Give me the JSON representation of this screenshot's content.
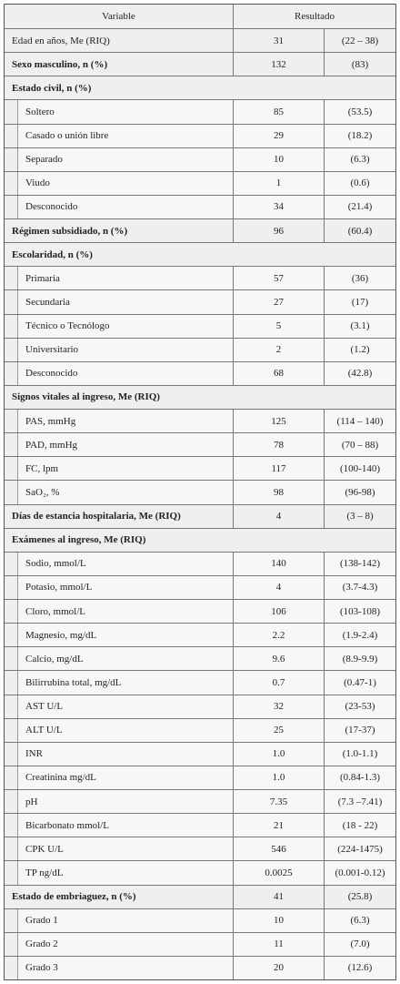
{
  "table": {
    "header": [
      "Variable",
      "Resultado"
    ],
    "rows": [
      {
        "style": "plain",
        "label": "Edad en años, Me (RIQ)",
        "value": "31",
        "range": "(22 – 38)"
      },
      {
        "style": "bold",
        "label": "Sexo masculino, n (%)",
        "value": "132",
        "range": "(83)"
      },
      {
        "style": "section",
        "label": "Estado civil, n (%)"
      },
      {
        "style": "sub",
        "label": "Soltero",
        "value": "85",
        "range": "(53.5)"
      },
      {
        "style": "sub",
        "label": "Casado o unión libre",
        "value": "29",
        "range": "(18.2)"
      },
      {
        "style": "sub",
        "label": "Separado",
        "value": "10",
        "range": "(6.3)"
      },
      {
        "style": "sub",
        "label": "Viudo",
        "value": "1",
        "range": "(0.6)"
      },
      {
        "style": "sub",
        "label": "Desconocido",
        "value": "34",
        "range": "(21.4)"
      },
      {
        "style": "bold",
        "label": "Régimen subsidiado, n (%)",
        "value": "96",
        "range": "(60.4)"
      },
      {
        "style": "section",
        "label": "Escolaridad, n (%)"
      },
      {
        "style": "sub",
        "label": "Primaria",
        "value": "57",
        "range": "(36)"
      },
      {
        "style": "sub",
        "label": "Secundaria",
        "value": "27",
        "range": "(17)"
      },
      {
        "style": "sub",
        "label": "Técnico o Tecnólogo",
        "value": "5",
        "range": "(3.1)"
      },
      {
        "style": "sub",
        "label": "Universitario",
        "value": "2",
        "range": "(1.2)"
      },
      {
        "style": "sub",
        "label": "Desconocido",
        "value": "68",
        "range": "(42.8)"
      },
      {
        "style": "section",
        "label": "Signos vitales al ingreso, Me (RIQ)"
      },
      {
        "style": "sub",
        "label": "PAS, mmHg",
        "value": "125",
        "range": "(114 – 140)"
      },
      {
        "style": "sub",
        "label": "PAD, mmHg",
        "value": "78",
        "range": "(70 – 88)"
      },
      {
        "style": "sub",
        "label": "FC, lpm",
        "value": "117",
        "range": "(100-140)"
      },
      {
        "style": "sub",
        "label": "SaO₂, %",
        "value": "98",
        "range": "(96-98)"
      },
      {
        "style": "bold",
        "label": "Días de estancia hospitalaria, Me (RIQ)",
        "value": "4",
        "range": "(3 – 8)"
      },
      {
        "style": "section",
        "label": "Exámenes al ingreso, Me (RIQ)"
      },
      {
        "style": "sub",
        "label": "Sodio, mmol/L",
        "value": "140",
        "range": "(138-142)"
      },
      {
        "style": "sub",
        "label": "Potasio, mmol/L",
        "value": "4",
        "range": "(3.7-4.3)"
      },
      {
        "style": "sub",
        "label": "Cloro, mmol/L",
        "value": "106",
        "range": "(103-108)"
      },
      {
        "style": "sub",
        "label": "Magnesio, mg/dL",
        "value": "2.2",
        "range": "(1.9-2.4)"
      },
      {
        "style": "sub",
        "label": "Calcio, mg/dL",
        "value": "9.6",
        "range": "(8.9-9.9)"
      },
      {
        "style": "sub",
        "label": "Bilirrubina total, mg/dL",
        "value": "0.7",
        "range": "(0.47-1)"
      },
      {
        "style": "sub",
        "label": "AST U/L",
        "value": "32",
        "range": "(23-53)"
      },
      {
        "style": "sub",
        "label": "ALT U/L",
        "value": "25",
        "range": "(17-37)"
      },
      {
        "style": "sub",
        "label": "INR",
        "value": "1.0",
        "range": "(1.0-1.1)"
      },
      {
        "style": "sub",
        "label": "Creatinina mg/dL",
        "value": "1.0",
        "range": "(0.84-1.3)"
      },
      {
        "style": "sub",
        "label": "pH",
        "value": "7.35",
        "range": "(7.3 –7.41)"
      },
      {
        "style": "sub",
        "label": "Bicarbonato mmol/L",
        "value": "21",
        "range": "(18 - 22)"
      },
      {
        "style": "sub",
        "label": "CPK U/L",
        "value": "546",
        "range": "(224-1475)"
      },
      {
        "style": "sub",
        "label": "TP ng/dL",
        "value": "0.0025",
        "range": "(0.001-0.12)"
      },
      {
        "style": "bold",
        "label": "Estado de embriaguez, n (%)",
        "value": "41",
        "range": "(25.8)"
      },
      {
        "style": "sub",
        "label": "Grado 1",
        "value": "10",
        "range": "(6.3)"
      },
      {
        "style": "sub",
        "label": "Grado 2",
        "value": "11",
        "range": "(7.0)"
      },
      {
        "style": "sub",
        "label": "Grado 3",
        "value": "20",
        "range": "(12.6)"
      }
    ]
  }
}
